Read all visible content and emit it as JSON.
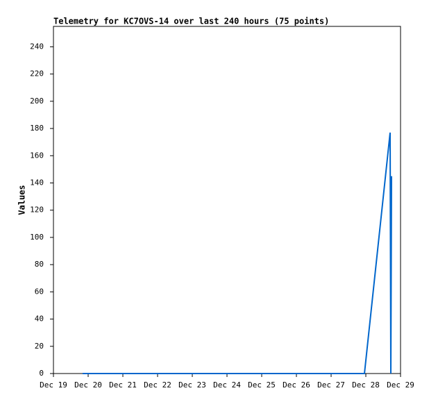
{
  "chart_data": {
    "type": "line",
    "title": "Telemetry for KC7OVS-14 over last 240 hours (75 points)",
    "y_label": "Values",
    "x": [
      19.84,
      27.96,
      28.7,
      28.72,
      28.74
    ],
    "series": [
      {
        "color": "#0066cc",
        "values": [
          0,
          0,
          177,
          0,
          145
        ]
      }
    ],
    "xlim": [
      19,
      29
    ],
    "xticks": [
      {
        "value": 19,
        "label": "Dec 19"
      },
      {
        "value": 20,
        "label": "Dec 20"
      },
      {
        "value": 21,
        "label": "Dec 21"
      },
      {
        "value": 22,
        "label": "Dec 22"
      },
      {
        "value": 23,
        "label": "Dec 23"
      },
      {
        "value": 24,
        "label": "Dec 24"
      },
      {
        "value": 25,
        "label": "Dec 25"
      },
      {
        "value": 26,
        "label": "Dec 26"
      },
      {
        "value": 27,
        "label": "Dec 27"
      },
      {
        "value": 28,
        "label": "Dec 28"
      },
      {
        "value": 29,
        "label": "Dec 29"
      }
    ],
    "ylim": [
      0,
      255
    ],
    "yticks": [
      0,
      20,
      40,
      60,
      80,
      100,
      120,
      140,
      160,
      180,
      200,
      220,
      240
    ],
    "grid": false
  }
}
